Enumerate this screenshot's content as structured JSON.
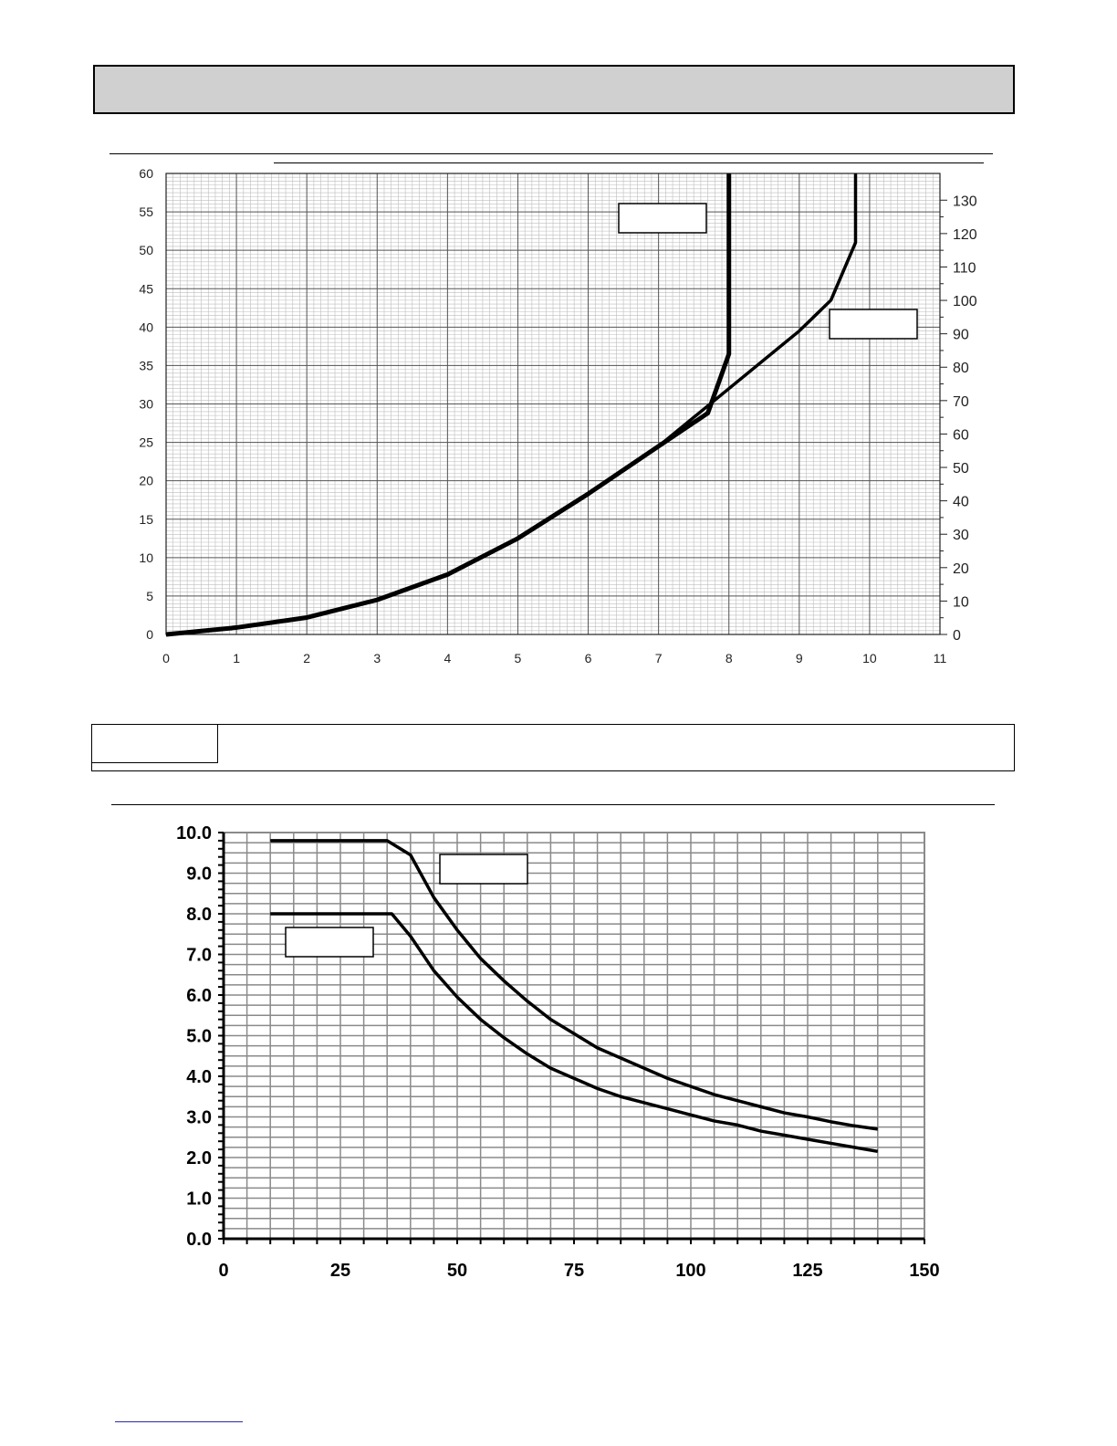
{
  "chart_data": [
    {
      "type": "line",
      "title": "",
      "xlabel": "",
      "ylabel": "",
      "y2label": "",
      "xlim": [
        0,
        11
      ],
      "ylim": [
        0,
        60
      ],
      "y2lim": [
        0,
        138
      ],
      "grid": true,
      "x_ticks": [
        0,
        1,
        2,
        3,
        4,
        5,
        6,
        7,
        8,
        9,
        10,
        11
      ],
      "x_tick_labels": [
        "0",
        "1",
        "2",
        "3",
        "4",
        "5",
        "6",
        "7",
        "8",
        "9",
        "10",
        "11"
      ],
      "y_ticks": [
        0,
        5,
        10,
        15,
        20,
        25,
        30,
        35,
        40,
        45,
        50,
        55,
        60
      ],
      "y2_ticks": [
        0,
        10,
        20,
        30,
        40,
        50,
        60,
        70,
        80,
        90,
        100,
        110,
        120,
        130
      ],
      "series": [
        {
          "name": "",
          "label_box": "top-center",
          "x": [
            0,
            1,
            2,
            3,
            4,
            5,
            6,
            7,
            7.7,
            8.0,
            8.0
          ],
          "y": [
            0,
            0.9,
            2.2,
            4.5,
            7.8,
            12.5,
            18.3,
            24.5,
            28.8,
            36.5,
            60
          ]
        },
        {
          "name": "",
          "label_box": "right",
          "x": [
            0,
            1,
            2,
            3,
            4,
            5,
            6,
            7,
            8,
            9,
            9.45,
            9.8,
            9.8
          ],
          "y": [
            0,
            0.9,
            2.2,
            4.5,
            7.8,
            12.5,
            18.3,
            24.5,
            32,
            39.5,
            43.5,
            51,
            60
          ]
        }
      ]
    },
    {
      "type": "line",
      "title": "",
      "xlabel": "",
      "ylabel": "",
      "xlim": [
        0,
        150
      ],
      "ylim": [
        0,
        10
      ],
      "grid": true,
      "x_ticks": [
        0,
        25,
        50,
        75,
        100,
        125,
        150
      ],
      "x_tick_labels": [
        "0",
        "25",
        "50",
        "75",
        "100",
        "125",
        "150"
      ],
      "y_ticks": [
        0,
        1,
        2,
        3,
        4,
        5,
        6,
        7,
        8,
        9,
        10
      ],
      "y_tick_labels": [
        "0.0",
        "1.0",
        "2.0",
        "3.0",
        "4.0",
        "5.0",
        "6.0",
        "7.0",
        "8.0",
        "9.0",
        "10.0"
      ],
      "series": [
        {
          "name": "",
          "label_box": "upper",
          "x": [
            10,
            35,
            40,
            45,
            50,
            55,
            60,
            65,
            70,
            75,
            80,
            85,
            90,
            95,
            100,
            105,
            110,
            115,
            120,
            125,
            130,
            135,
            140
          ],
          "y": [
            9.8,
            9.8,
            9.45,
            8.4,
            7.6,
            6.9,
            6.35,
            5.85,
            5.4,
            5.05,
            4.7,
            4.45,
            4.2,
            3.95,
            3.75,
            3.55,
            3.4,
            3.25,
            3.1,
            3.0,
            2.88,
            2.78,
            2.7
          ]
        },
        {
          "name": "",
          "label_box": "lower",
          "x": [
            10,
            35,
            36,
            40,
            45,
            50,
            55,
            60,
            65,
            70,
            75,
            80,
            85,
            90,
            95,
            100,
            105,
            110,
            115,
            120,
            125,
            130,
            135,
            140
          ],
          "y": [
            8.0,
            8.0,
            8.0,
            7.45,
            6.6,
            5.95,
            5.4,
            4.95,
            4.55,
            4.2,
            3.95,
            3.7,
            3.5,
            3.35,
            3.2,
            3.05,
            2.9,
            2.8,
            2.65,
            2.55,
            2.45,
            2.35,
            2.25,
            2.15
          ]
        }
      ]
    }
  ]
}
